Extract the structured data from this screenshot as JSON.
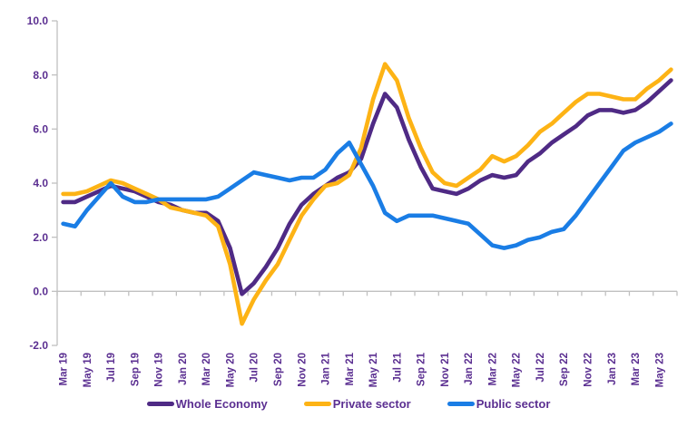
{
  "chart_data": {
    "type": "line",
    "x": [
      "Mar 19",
      "Apr 19",
      "May 19",
      "Jun 19",
      "Jul 19",
      "Aug 19",
      "Sep 19",
      "Oct 19",
      "Nov 19",
      "Dec 19",
      "Jan 20",
      "Feb 20",
      "Mar 20",
      "Apr 20",
      "May 20",
      "Jun 20",
      "Jul 20",
      "Aug 20",
      "Sep 20",
      "Oct 20",
      "Nov 20",
      "Dec 20",
      "Jan 21",
      "Feb 21",
      "Mar 21",
      "Apr 21",
      "May 21",
      "Jun 21",
      "Jul 21",
      "Aug 21",
      "Sep 21",
      "Oct 21",
      "Nov 21",
      "Dec 21",
      "Jan 22",
      "Feb 22",
      "Mar 22",
      "Apr 22",
      "May 22",
      "Jun 22",
      "Jul 22",
      "Aug 22",
      "Sep 22",
      "Oct 22",
      "Nov 22",
      "Dec 22",
      "Jan 23",
      "Feb 23",
      "Mar 23",
      "Apr 23",
      "May 23",
      "Jun 23"
    ],
    "x_tick_labels": [
      "Mar 19",
      "May 19",
      "Jul 19",
      "Sep 19",
      "Nov 19",
      "Jan 20",
      "Mar 20",
      "May 20",
      "Jul 20",
      "Sep 20",
      "Nov 20",
      "Jan 21",
      "Mar 21",
      "May 21",
      "Jul 21",
      "Sep 21",
      "Nov 21",
      "Jan 22",
      "Mar 22",
      "May 22",
      "Jul 22",
      "Sep 22",
      "Nov 22",
      "Jan 23",
      "Mar 23",
      "May 23"
    ],
    "label_every": 2,
    "series": [
      {
        "name": "Whole Economy",
        "color": "#4F2A85",
        "values": [
          3.3,
          3.3,
          3.5,
          3.7,
          3.9,
          3.8,
          3.7,
          3.5,
          3.3,
          3.2,
          3.0,
          2.9,
          2.9,
          2.6,
          1.6,
          -0.1,
          0.3,
          0.9,
          1.6,
          2.5,
          3.2,
          3.6,
          3.9,
          4.2,
          4.4,
          4.9,
          6.2,
          7.3,
          6.8,
          5.6,
          4.6,
          3.8,
          3.7,
          3.6,
          3.8,
          4.1,
          4.3,
          4.2,
          4.3,
          4.8,
          5.1,
          5.5,
          5.8,
          6.1,
          6.5,
          6.7,
          6.7,
          6.6,
          6.7,
          7.0,
          7.4,
          7.8
        ]
      },
      {
        "name": "Private sector",
        "color": "#FDB315",
        "values": [
          3.6,
          3.6,
          3.7,
          3.9,
          4.1,
          4.0,
          3.8,
          3.6,
          3.4,
          3.1,
          3.0,
          2.9,
          2.8,
          2.4,
          1.0,
          -1.2,
          -0.3,
          0.4,
          1.0,
          1.9,
          2.8,
          3.4,
          3.9,
          4.0,
          4.3,
          5.3,
          7.1,
          8.4,
          7.8,
          6.4,
          5.3,
          4.4,
          4.0,
          3.9,
          4.2,
          4.5,
          5.0,
          4.8,
          5.0,
          5.4,
          5.9,
          6.2,
          6.6,
          7.0,
          7.3,
          7.3,
          7.2,
          7.1,
          7.1,
          7.5,
          7.8,
          8.2
        ]
      },
      {
        "name": "Public sector",
        "color": "#1A7DE5",
        "values": [
          2.5,
          2.4,
          3.0,
          3.5,
          4.0,
          3.5,
          3.3,
          3.3,
          3.4,
          3.4,
          3.4,
          3.4,
          3.4,
          3.5,
          3.8,
          4.1,
          4.4,
          4.3,
          4.2,
          4.1,
          4.2,
          4.2,
          4.5,
          5.1,
          5.5,
          4.7,
          3.9,
          2.9,
          2.6,
          2.8,
          2.8,
          2.8,
          2.7,
          2.6,
          2.5,
          2.1,
          1.7,
          1.6,
          1.7,
          1.9,
          2.0,
          2.2,
          2.3,
          2.8,
          3.4,
          4.0,
          4.6,
          5.2,
          5.5,
          5.7,
          5.9,
          6.2
        ]
      }
    ],
    "title": "",
    "xlabel": "",
    "ylabel": "",
    "ylim": [
      -2.0,
      10.0
    ],
    "y_ticks": [
      10.0,
      8.0,
      6.0,
      4.0,
      2.0,
      0.0,
      -2.0
    ],
    "y_tick_format_decimals": 1,
    "grid": false,
    "legend_position": "bottom",
    "axis_color": "#C0C0C0",
    "label_color": "#5B2F91"
  }
}
